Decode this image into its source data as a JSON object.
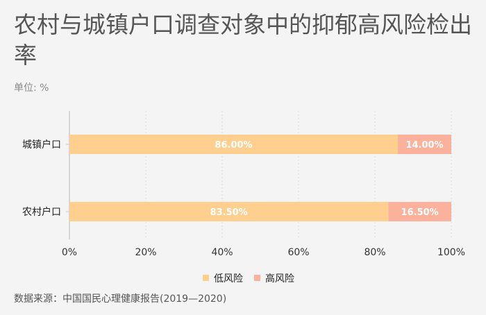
{
  "title": "农村与城镇户口调查对象中的抑郁高风险检出率",
  "unit": "单位: %",
  "source": "数据来源：中国国民心理健康报告(2019—2020)",
  "chart_data": {
    "type": "bar",
    "orientation": "horizontal",
    "stacked": true,
    "categories": [
      "城镇户口",
      "农村户口"
    ],
    "series": [
      {
        "name": "低风险",
        "values": [
          86.0,
          83.5
        ],
        "color": "#fecf8f"
      },
      {
        "name": "高风险",
        "values": [
          14.0,
          16.5
        ],
        "color": "#fcb19c"
      }
    ],
    "xlim": [
      0,
      100
    ],
    "xticks": [
      "0%",
      "20%",
      "40%",
      "60%",
      "80%",
      "100%"
    ],
    "grid": true,
    "legend": "bottom"
  }
}
